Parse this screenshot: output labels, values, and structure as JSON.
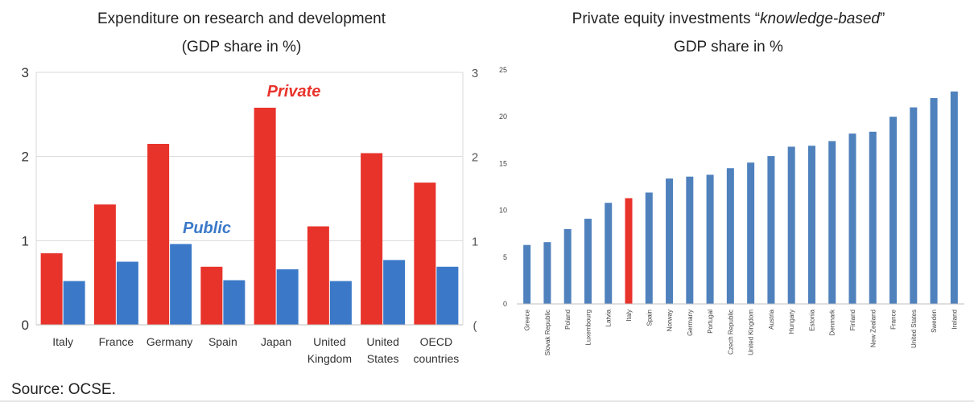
{
  "source": "Source: OCSE.",
  "colors": {
    "private": "#e8332b",
    "public": "#3b79c8",
    "bar": "#4f81bd",
    "highlight": "#e8332b"
  },
  "chart_data": [
    {
      "type": "bar",
      "title": "Expenditure on research and development",
      "subtitle": "(GDP share in %)",
      "categories": [
        "Italy",
        "France",
        "Germany",
        "Spain",
        "Japan",
        "United Kingdom",
        "United States",
        "OECD countries"
      ],
      "category_lines": [
        [
          "Italy"
        ],
        [
          "France"
        ],
        [
          "Germany"
        ],
        [
          "Spain"
        ],
        [
          "Japan"
        ],
        [
          "United",
          "Kingdom"
        ],
        [
          "United",
          "States"
        ],
        [
          "OECD",
          "countries"
        ]
      ],
      "series": [
        {
          "name": "Private",
          "values": [
            0.85,
            1.43,
            2.15,
            0.69,
            2.58,
            1.17,
            2.04,
            1.69
          ]
        },
        {
          "name": "Public",
          "values": [
            0.52,
            0.75,
            0.96,
            0.53,
            0.66,
            0.52,
            0.77,
            0.69
          ]
        }
      ],
      "ylim": [
        0,
        3
      ],
      "yticks": [
        "0",
        "1",
        "2",
        "3"
      ],
      "right_yticks": [
        "(",
        "1",
        "2",
        "3"
      ],
      "grid": true
    },
    {
      "type": "bar",
      "title_prefix": "Private equity investments “",
      "title_italic": "knowledge-based",
      "title_suffix": "”",
      "subtitle": "GDP share in %",
      "categories": [
        "Greece",
        "Slovak Republic",
        "Poland",
        "Luxembourg",
        "Latvia",
        "Italy",
        "Spain",
        "Norway",
        "Germany",
        "Portugal",
        "Czech Republic",
        "United Kingdom",
        "Austria",
        "Hungary",
        "Estonia",
        "Denmark",
        "Finland",
        "New Zealand",
        "France",
        "United States",
        "Sweden",
        "Ireland"
      ],
      "values": [
        6.3,
        6.6,
        8.0,
        9.1,
        10.8,
        11.3,
        11.9,
        13.4,
        13.6,
        13.8,
        14.5,
        15.1,
        15.8,
        16.8,
        16.9,
        17.4,
        18.2,
        18.4,
        20.0,
        21.0,
        22.0,
        22.7
      ],
      "highlight": "Italy",
      "ylim": [
        0,
        25
      ],
      "yticks": [
        "0",
        "5",
        "10",
        "15",
        "20",
        "25"
      ],
      "grid": false
    }
  ]
}
